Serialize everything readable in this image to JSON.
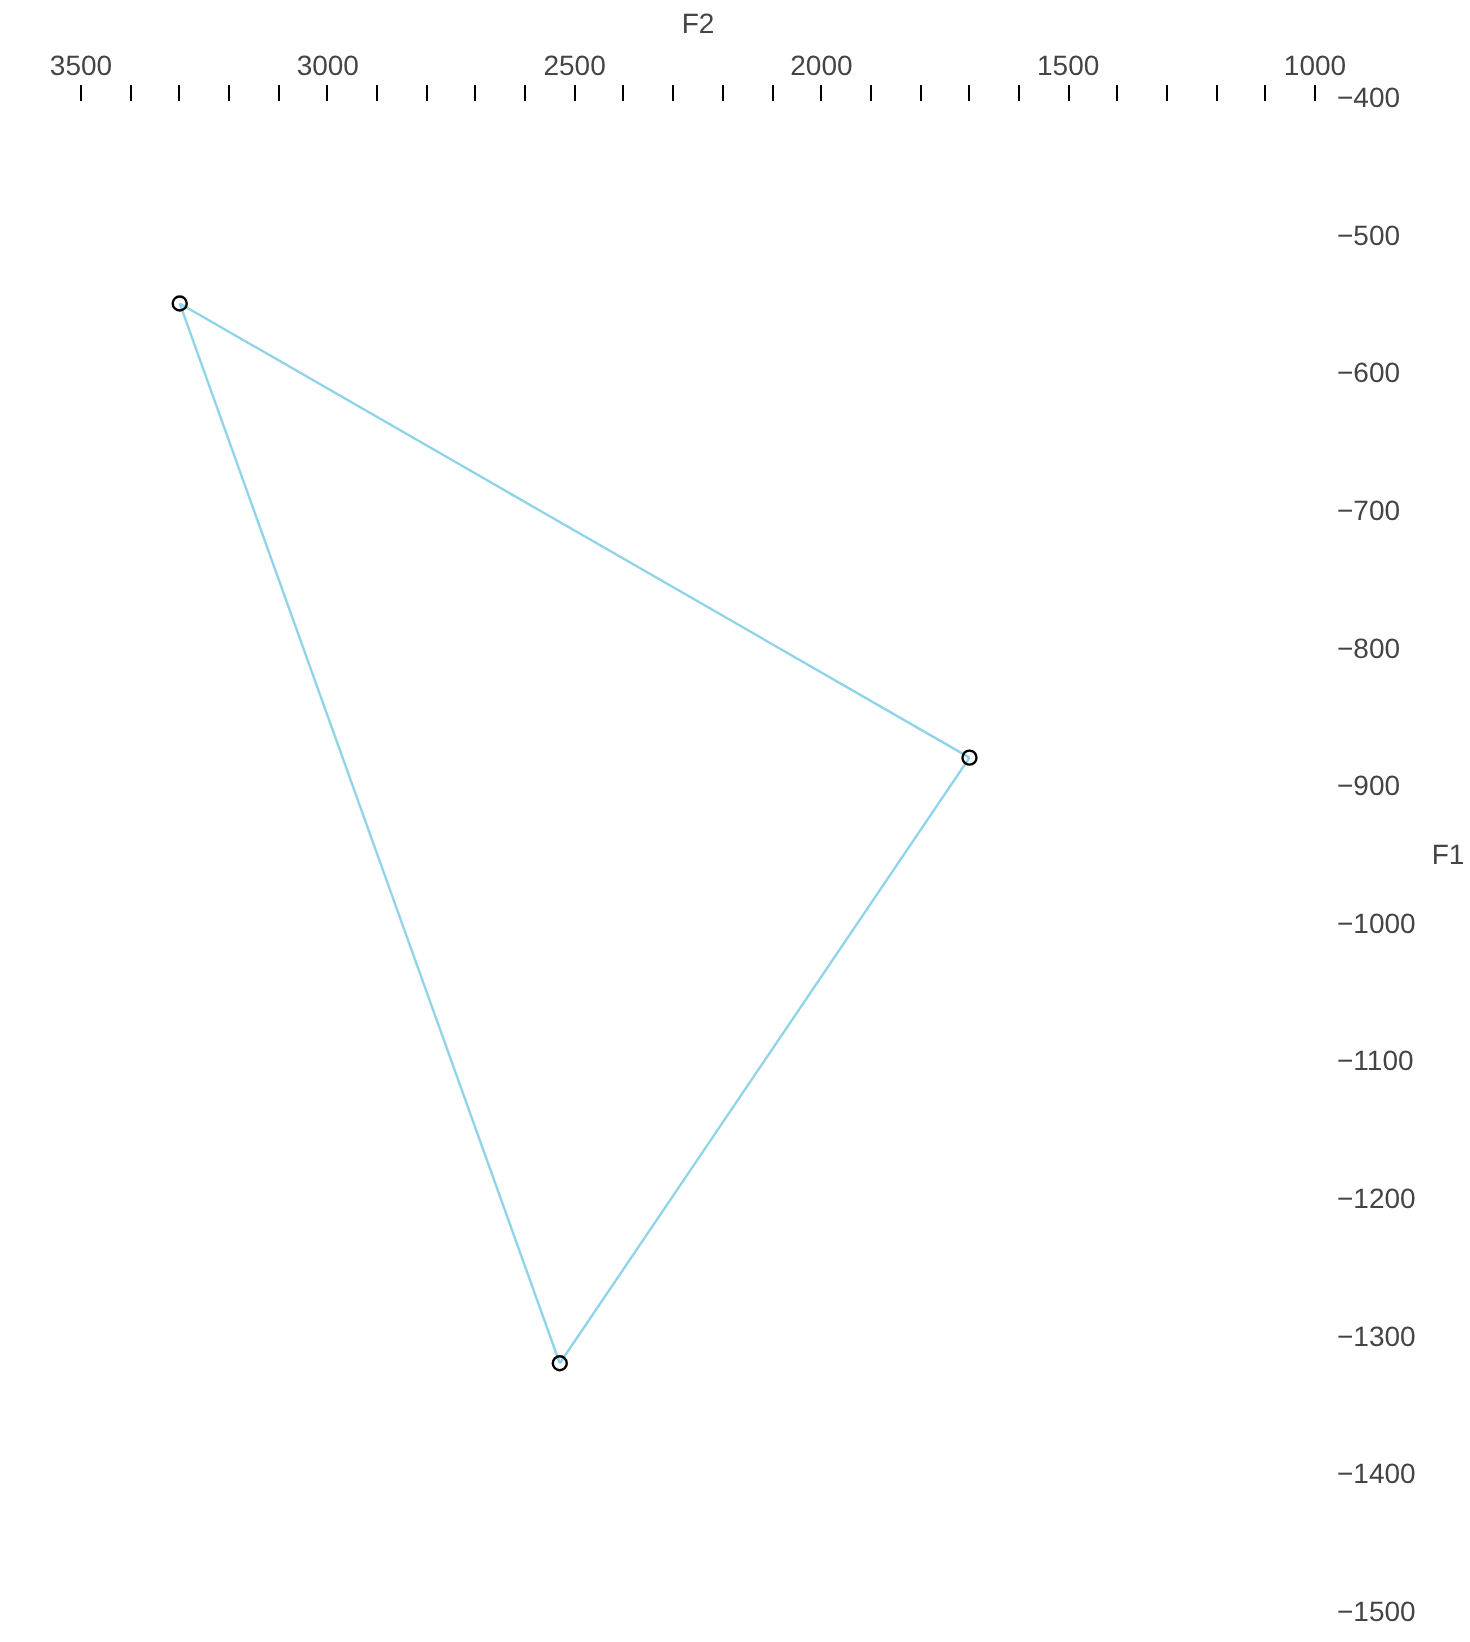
{
  "chart_data": {
    "type": "line",
    "xlabel": "F2",
    "ylabel": "F1",
    "xlim": [
      3500,
      1000
    ],
    "ylim": [
      -1500,
      -400
    ],
    "xticks": [
      {
        "value": 3500,
        "label": "3500"
      },
      {
        "value": 3400,
        "label": null
      },
      {
        "value": 3300,
        "label": null
      },
      {
        "value": 3200,
        "label": null
      },
      {
        "value": 3100,
        "label": null
      },
      {
        "value": 3000,
        "label": "3000"
      },
      {
        "value": 2900,
        "label": null
      },
      {
        "value": 2800,
        "label": null
      },
      {
        "value": 2700,
        "label": null
      },
      {
        "value": 2600,
        "label": null
      },
      {
        "value": 2500,
        "label": "2500"
      },
      {
        "value": 2400,
        "label": null
      },
      {
        "value": 2300,
        "label": null
      },
      {
        "value": 2200,
        "label": null
      },
      {
        "value": 2100,
        "label": null
      },
      {
        "value": 2000,
        "label": "2000"
      },
      {
        "value": 1900,
        "label": null
      },
      {
        "value": 1800,
        "label": null
      },
      {
        "value": 1700,
        "label": null
      },
      {
        "value": 1600,
        "label": null
      },
      {
        "value": 1500,
        "label": "1500"
      },
      {
        "value": 1400,
        "label": null
      },
      {
        "value": 1300,
        "label": null
      },
      {
        "value": 1200,
        "label": null
      },
      {
        "value": 1100,
        "label": null
      },
      {
        "value": 1000,
        "label": "1000"
      }
    ],
    "yticks": [
      {
        "value": -400,
        "label": "−400"
      },
      {
        "value": -500,
        "label": "−500"
      },
      {
        "value": -600,
        "label": "−600"
      },
      {
        "value": -700,
        "label": "−700"
      },
      {
        "value": -800,
        "label": "−800"
      },
      {
        "value": -900,
        "label": "−900"
      },
      {
        "value": -1000,
        "label": "−1000"
      },
      {
        "value": -1100,
        "label": "−1100"
      },
      {
        "value": -1200,
        "label": "−1200"
      },
      {
        "value": -1300,
        "label": "−1300"
      },
      {
        "value": -1400,
        "label": "−1400"
      },
      {
        "value": -1500,
        "label": "−1500"
      }
    ],
    "grid": false,
    "series": [
      {
        "color": "#8fd3e8",
        "marker": "none",
        "x": [
          3300,
          1700
        ],
        "values": [
          -550,
          -880
        ]
      },
      {
        "color": "#8fd3e8",
        "marker": "none",
        "x": [
          1700,
          2530
        ],
        "values": [
          -880,
          -1320
        ]
      },
      {
        "color": "#8fd3e8",
        "marker": "none",
        "x": [
          2530,
          3300
        ],
        "values": [
          -1320,
          -550
        ]
      },
      {
        "type": "scatter",
        "color": "#000000",
        "marker": "circle",
        "x": [
          3300,
          1700,
          2530
        ],
        "values": [
          -550,
          -880,
          -1320
        ]
      }
    ]
  }
}
